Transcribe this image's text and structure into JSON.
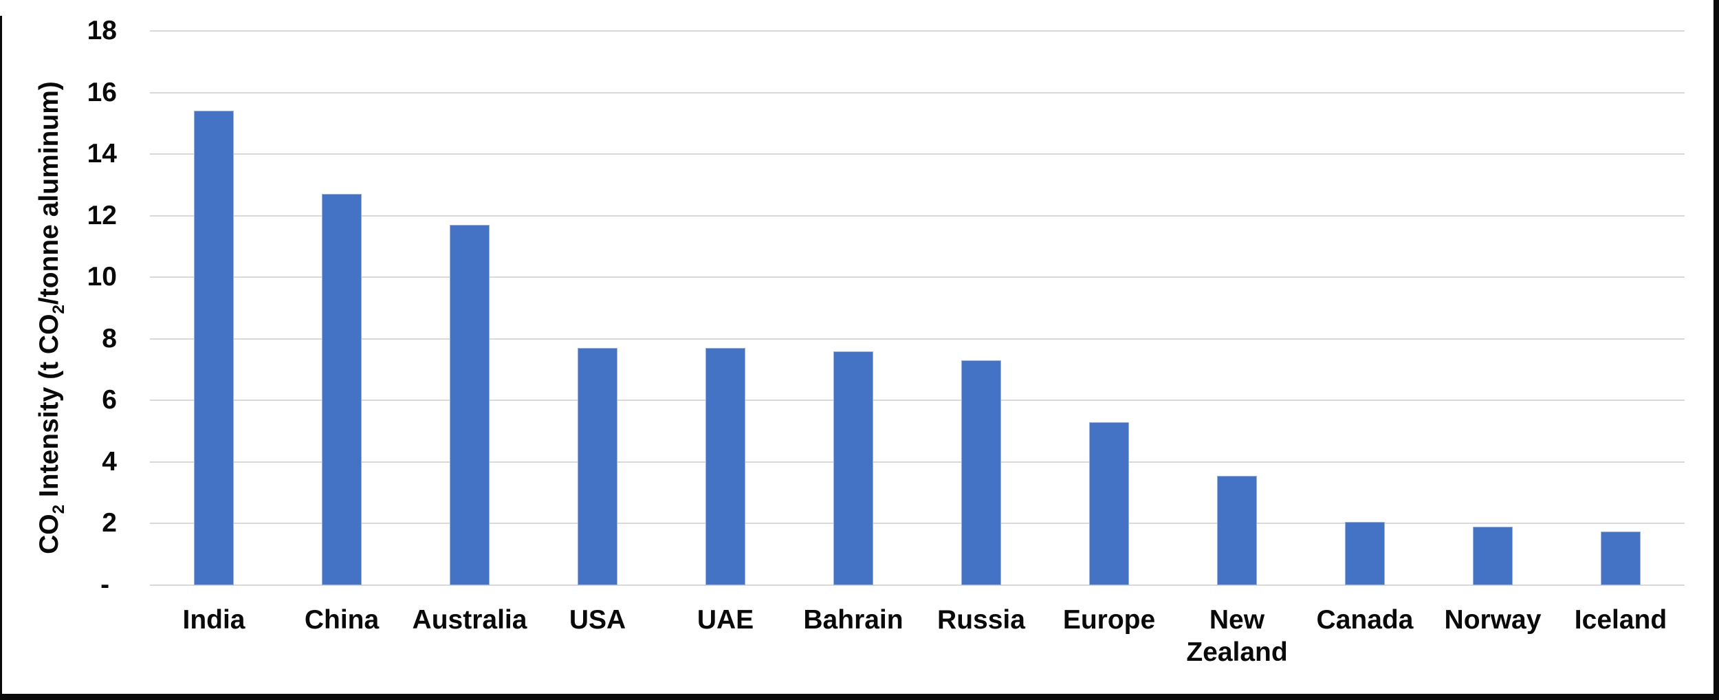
{
  "page": {
    "background": "#ffffff",
    "frame_color": "#0a0a0a"
  },
  "chart_data": {
    "type": "bar",
    "ylabel": "CO2 Intensity (t CO2/tonne aluminum)",
    "ylabel_rich": {
      "pre": "CO",
      "sub1": "2",
      "mid": " Intensity (t CO",
      "sub2": "2",
      "post": "/tonne aluminum)"
    },
    "categories": [
      "India",
      "China",
      "Australia",
      "USA",
      "UAE",
      "Bahrain",
      "Russia",
      "Europe",
      "New Zealand",
      "Canada",
      "Norway",
      "Iceland"
    ],
    "values": [
      15.4,
      12.7,
      11.7,
      7.7,
      7.7,
      7.6,
      7.3,
      5.3,
      3.55,
      2.05,
      1.9,
      1.75
    ],
    "ylim": [
      0,
      18
    ],
    "y_tick_step": 2,
    "y_ticks": [
      {
        "value": 0,
        "label": " - "
      },
      {
        "value": 2,
        "label": "2"
      },
      {
        "value": 4,
        "label": "4"
      },
      {
        "value": 6,
        "label": "6"
      },
      {
        "value": 8,
        "label": "8"
      },
      {
        "value": 10,
        "label": "10"
      },
      {
        "value": 12,
        "label": "12"
      },
      {
        "value": 14,
        "label": "14"
      },
      {
        "value": 16,
        "label": "16"
      },
      {
        "value": 18,
        "label": "18"
      }
    ],
    "grid": "horizontal",
    "legend": "none",
    "colors": {
      "bar": "#4472C4",
      "gridline": "#D9D9D9",
      "text": "#0a0a0a"
    }
  }
}
